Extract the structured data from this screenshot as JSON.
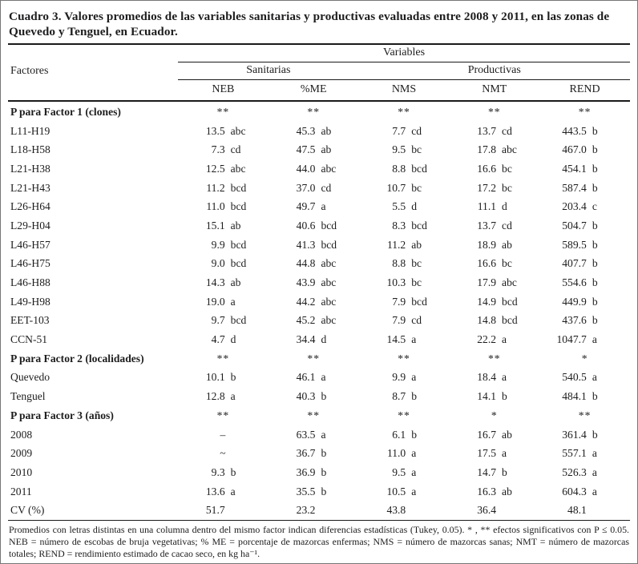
{
  "title": "Cuadro 3. Valores promedios de las variables sanitarias y productivas evaluadas entre 2008 y 2011, en las zonas de Quevedo y Tenguel, en Ecuador.",
  "header": {
    "variables": "Variables",
    "factores": "Factores",
    "group_sanitarias": "Sanitarias",
    "group_productivas": "Productivas",
    "columns": [
      "NEB",
      "%ME",
      "NMS",
      "NMT",
      "REND"
    ]
  },
  "table": {
    "rows": [
      {
        "label": "P para Factor 1 (clones)",
        "bold": true,
        "cells": [
          {
            "m": "**"
          },
          {
            "m": "**"
          },
          {
            "m": "**"
          },
          {
            "m": "**"
          },
          {
            "m": "**"
          }
        ]
      },
      {
        "label": "L11-H19",
        "cells": [
          {
            "v": "13.5",
            "l": "abc"
          },
          {
            "v": "45.3",
            "l": "ab"
          },
          {
            "v": "7.7",
            "l": "cd"
          },
          {
            "v": "13.7",
            "l": "cd"
          },
          {
            "v": "443.5",
            "l": "b"
          }
        ]
      },
      {
        "label": "L18-H58",
        "cells": [
          {
            "v": "7.3",
            "l": "cd"
          },
          {
            "v": "47.5",
            "l": "ab"
          },
          {
            "v": "9.5",
            "l": "bc"
          },
          {
            "v": "17.8",
            "l": "abc"
          },
          {
            "v": "467.0",
            "l": "b"
          }
        ]
      },
      {
        "label": "L21-H38",
        "cells": [
          {
            "v": "12.5",
            "l": "abc"
          },
          {
            "v": "44.0",
            "l": "abc"
          },
          {
            "v": "8.8",
            "l": "bcd"
          },
          {
            "v": "16.6",
            "l": "bc"
          },
          {
            "v": "454.1",
            "l": "b"
          }
        ]
      },
      {
        "label": "L21-H43",
        "cells": [
          {
            "v": "11.2",
            "l": "bcd"
          },
          {
            "v": "37.0",
            "l": "cd"
          },
          {
            "v": "10.7",
            "l": "bc"
          },
          {
            "v": "17.2",
            "l": "bc"
          },
          {
            "v": "587.4",
            "l": "b"
          }
        ]
      },
      {
        "label": "L26-H64",
        "cells": [
          {
            "v": "11.0",
            "l": "bcd"
          },
          {
            "v": "49.7",
            "l": "a"
          },
          {
            "v": "5.5",
            "l": "d"
          },
          {
            "v": "11.1",
            "l": "d"
          },
          {
            "v": "203.4",
            "l": "c"
          }
        ]
      },
      {
        "label": "L29-H04",
        "cells": [
          {
            "v": "15.1",
            "l": "ab"
          },
          {
            "v": "40.6",
            "l": "bcd"
          },
          {
            "v": "8.3",
            "l": "bcd"
          },
          {
            "v": "13.7",
            "l": "cd"
          },
          {
            "v": "504.7",
            "l": "b"
          }
        ]
      },
      {
        "label": "L46-H57",
        "cells": [
          {
            "v": "9.9",
            "l": "bcd"
          },
          {
            "v": "41.3",
            "l": "bcd"
          },
          {
            "v": "11.2",
            "l": "ab"
          },
          {
            "v": "18.9",
            "l": "ab"
          },
          {
            "v": "589.5",
            "l": "b"
          }
        ]
      },
      {
        "label": "L46-H75",
        "cells": [
          {
            "v": "9.0",
            "l": "bcd"
          },
          {
            "v": "44.8",
            "l": "abc"
          },
          {
            "v": "8.8",
            "l": "bc"
          },
          {
            "v": "16.6",
            "l": "bc"
          },
          {
            "v": "407.7",
            "l": "b"
          }
        ]
      },
      {
        "label": "L46-H88",
        "cells": [
          {
            "v": "14.3",
            "l": "ab"
          },
          {
            "v": "43.9",
            "l": "abc"
          },
          {
            "v": "10.3",
            "l": "bc"
          },
          {
            "v": "17.9",
            "l": "abc"
          },
          {
            "v": "554.6",
            "l": "b"
          }
        ]
      },
      {
        "label": "L49-H98",
        "cells": [
          {
            "v": "19.0",
            "l": "a"
          },
          {
            "v": "44.2",
            "l": "abc"
          },
          {
            "v": "7.9",
            "l": "bcd"
          },
          {
            "v": "14.9",
            "l": "bcd"
          },
          {
            "v": "449.9",
            "l": "b"
          }
        ]
      },
      {
        "label": "EET-103",
        "cells": [
          {
            "v": "9.7",
            "l": "bcd"
          },
          {
            "v": "45.2",
            "l": "abc"
          },
          {
            "v": "7.9",
            "l": "cd"
          },
          {
            "v": "14.8",
            "l": "bcd"
          },
          {
            "v": "437.6",
            "l": "b"
          }
        ]
      },
      {
        "label": "CCN-51",
        "cells": [
          {
            "v": "4.7",
            "l": "d"
          },
          {
            "v": "34.4",
            "l": "d"
          },
          {
            "v": "14.5",
            "l": "a"
          },
          {
            "v": "22.2",
            "l": "a"
          },
          {
            "v": "1047.7",
            "l": "a"
          }
        ]
      },
      {
        "label": "P para Factor 2 (localidades)",
        "bold": true,
        "cells": [
          {
            "m": "**"
          },
          {
            "m": "**"
          },
          {
            "m": "**"
          },
          {
            "m": "**"
          },
          {
            "m": "*"
          }
        ]
      },
      {
        "label": "Quevedo",
        "cells": [
          {
            "v": "10.1",
            "l": "b"
          },
          {
            "v": "46.1",
            "l": "a"
          },
          {
            "v": "9.9",
            "l": "a"
          },
          {
            "v": "18.4",
            "l": "a"
          },
          {
            "v": "540.5",
            "l": "a"
          }
        ]
      },
      {
        "label": "Tenguel",
        "cells": [
          {
            "v": "12.8",
            "l": "a"
          },
          {
            "v": "40.3",
            "l": "b"
          },
          {
            "v": "8.7",
            "l": "b"
          },
          {
            "v": "14.1",
            "l": "b"
          },
          {
            "v": "484.1",
            "l": "b"
          }
        ]
      },
      {
        "label": "P para Factor 3 (años)",
        "bold": true,
        "cells": [
          {
            "m": "**"
          },
          {
            "m": "**"
          },
          {
            "m": "**"
          },
          {
            "m": "*"
          },
          {
            "m": "**"
          }
        ]
      },
      {
        "label": "2008",
        "cells": [
          {
            "m": "–"
          },
          {
            "v": "63.5",
            "l": "a"
          },
          {
            "v": "6.1",
            "l": "b"
          },
          {
            "v": "16.7",
            "l": "ab"
          },
          {
            "v": "361.4",
            "l": "b"
          }
        ]
      },
      {
        "label": "2009",
        "cells": [
          {
            "m": "~"
          },
          {
            "v": "36.7",
            "l": "b"
          },
          {
            "v": "11.0",
            "l": "a"
          },
          {
            "v": "17.5",
            "l": "a"
          },
          {
            "v": "557.1",
            "l": "a"
          }
        ]
      },
      {
        "label": "2010",
        "cells": [
          {
            "v": "9.3",
            "l": "b"
          },
          {
            "v": "36.9",
            "l": "b"
          },
          {
            "v": "9.5",
            "l": "a"
          },
          {
            "v": "14.7",
            "l": "b"
          },
          {
            "v": "526.3",
            "l": "a"
          }
        ]
      },
      {
        "label": "2011",
        "cells": [
          {
            "v": "13.6",
            "l": "a"
          },
          {
            "v": "35.5",
            "l": "b"
          },
          {
            "v": "10.5",
            "l": "a"
          },
          {
            "v": "16.3",
            "l": "ab"
          },
          {
            "v": "604.3",
            "l": "a"
          }
        ]
      },
      {
        "label": "CV (%)",
        "cells": [
          {
            "v": "51.7",
            "l": ""
          },
          {
            "v": "23.2",
            "l": ""
          },
          {
            "v": "43.8",
            "l": ""
          },
          {
            "v": "36.4",
            "l": ""
          },
          {
            "v": "48.1",
            "l": ""
          }
        ]
      }
    ]
  },
  "footnote": "Promedios con letras distintas en una columna dentro del mismo factor indican diferencias estadísticas (Tukey, 0.05). * , ** efectos significativos con P ≤ 0.05. NEB = número de escobas de bruja vegetativas; % ME = porcentaje de mazorcas enfermas; NMS = número de mazorcas sanas; NMT = número de mazorcas totales; REND = rendimiento estimado de cacao seco, en kg ha⁻¹."
}
